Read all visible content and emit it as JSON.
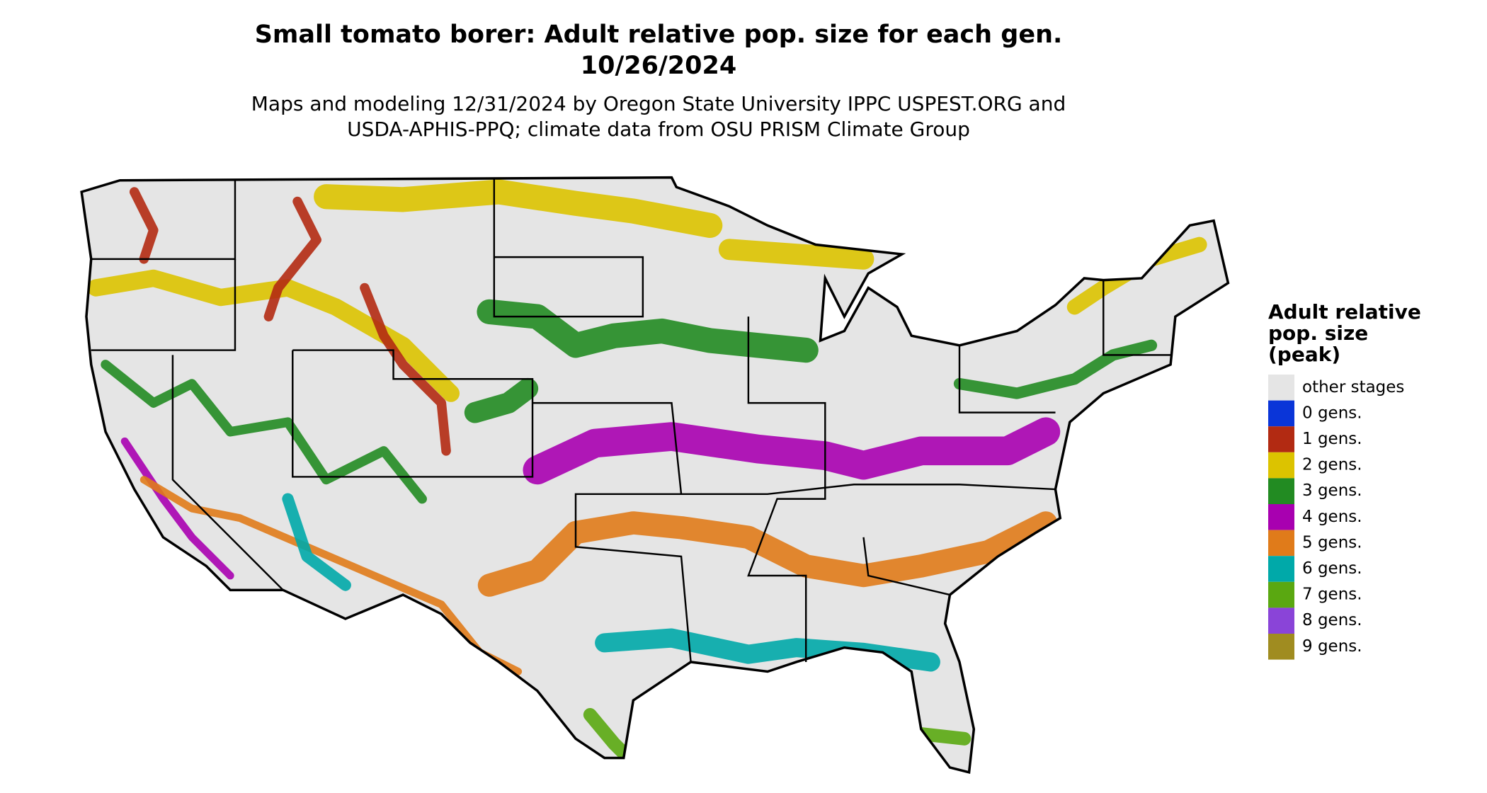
{
  "title": [
    "Small tomato borer: Adult relative pop. size for each gen.",
    "10/26/2024"
  ],
  "subtitle": [
    "Maps and modeling 12/31/2024 by Oregon State University IPPC USPEST.ORG and",
    "USDA-APHIS-PPQ; climate data from OSU PRISM Climate Group"
  ],
  "legend": {
    "title": [
      "Adult relative",
      "pop. size",
      "(peak)"
    ],
    "items": [
      {
        "label": "other stages",
        "color": "#e5e5e5"
      },
      {
        "label": "0 gens.",
        "color": "#0a35d8"
      },
      {
        "label": "1 gens.",
        "color": "#b22a12"
      },
      {
        "label": "2 gens.",
        "color": "#dcc300"
      },
      {
        "label": "3 gens.",
        "color": "#228b22"
      },
      {
        "label": "4 gens.",
        "color": "#a800b0"
      },
      {
        "label": "5 gens.",
        "color": "#e07b1a"
      },
      {
        "label": "6 gens.",
        "color": "#00a9a9"
      },
      {
        "label": "7 gens.",
        "color": "#5aa811"
      },
      {
        "label": "8 gens.",
        "color": "#8a44d8"
      },
      {
        "label": "9 gens.",
        "color": "#a08c20"
      }
    ]
  }
}
